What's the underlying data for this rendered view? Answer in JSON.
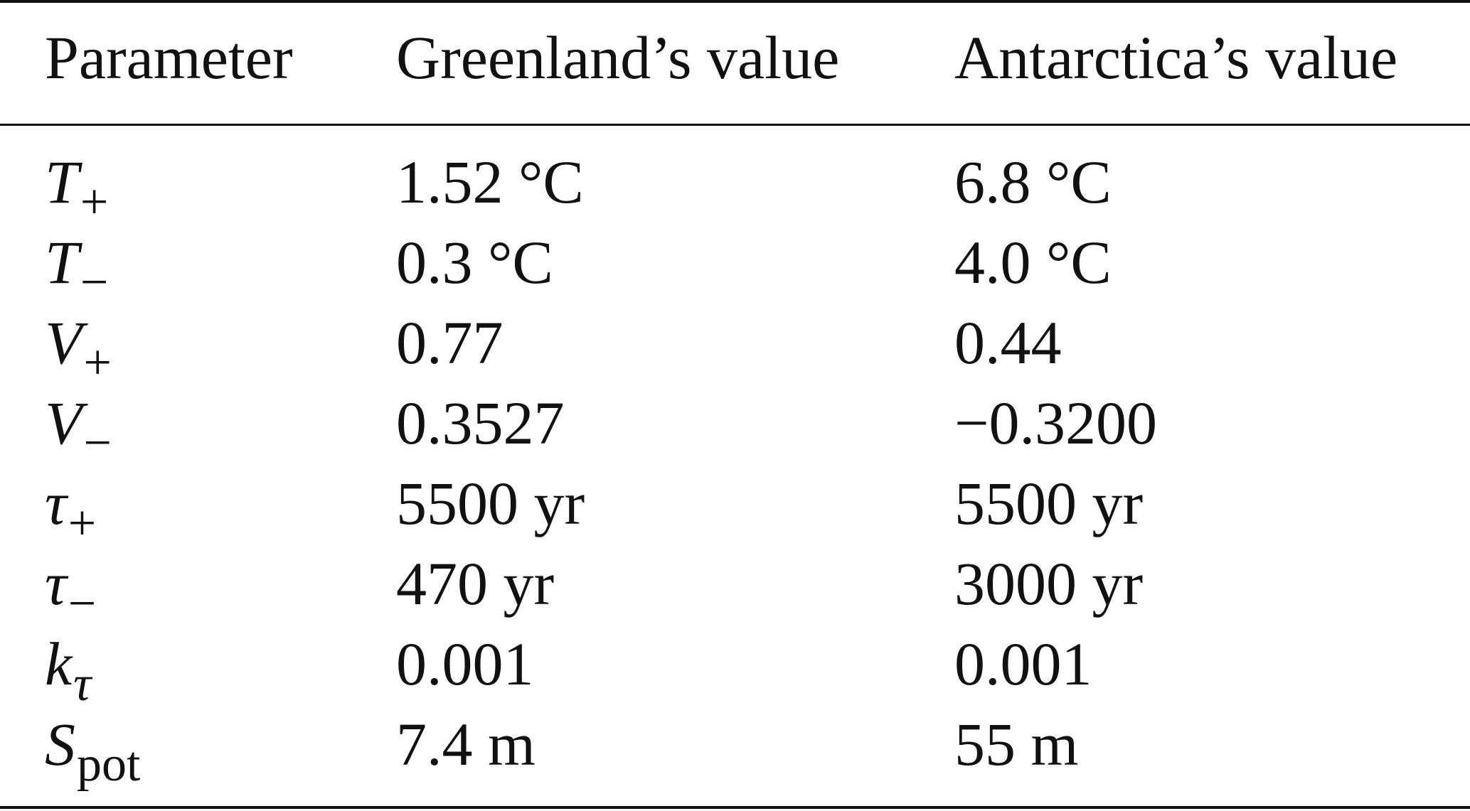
{
  "table": {
    "headers": [
      "Parameter",
      "Greenland’s value",
      "Antarctica’s value"
    ],
    "rows": [
      {
        "symbol": "T",
        "subscript": "+",
        "greenland": "1.52 °C",
        "antarctica": "6.8 °C"
      },
      {
        "symbol": "T",
        "subscript": "−",
        "greenland": "0.3 °C",
        "antarctica": "4.0 °C"
      },
      {
        "symbol": "V",
        "subscript": "+",
        "greenland": "0.77",
        "antarctica": "0.44"
      },
      {
        "symbol": "V",
        "subscript": "−",
        "greenland": "0.3527",
        "antarctica": "−0.3200"
      },
      {
        "symbol": "τ",
        "subscript": "+",
        "greenland": "5500 yr",
        "antarctica": "5500 yr"
      },
      {
        "symbol": "τ",
        "subscript": "−",
        "greenland": "470 yr",
        "antarctica": "3000 yr"
      },
      {
        "symbol": "k",
        "subscript": "τ",
        "greenland": "0.001",
        "antarctica": "0.001"
      },
      {
        "symbol": "S",
        "subscript": "pot",
        "greenland": "7.4 m",
        "antarctica": "55 m"
      }
    ]
  }
}
